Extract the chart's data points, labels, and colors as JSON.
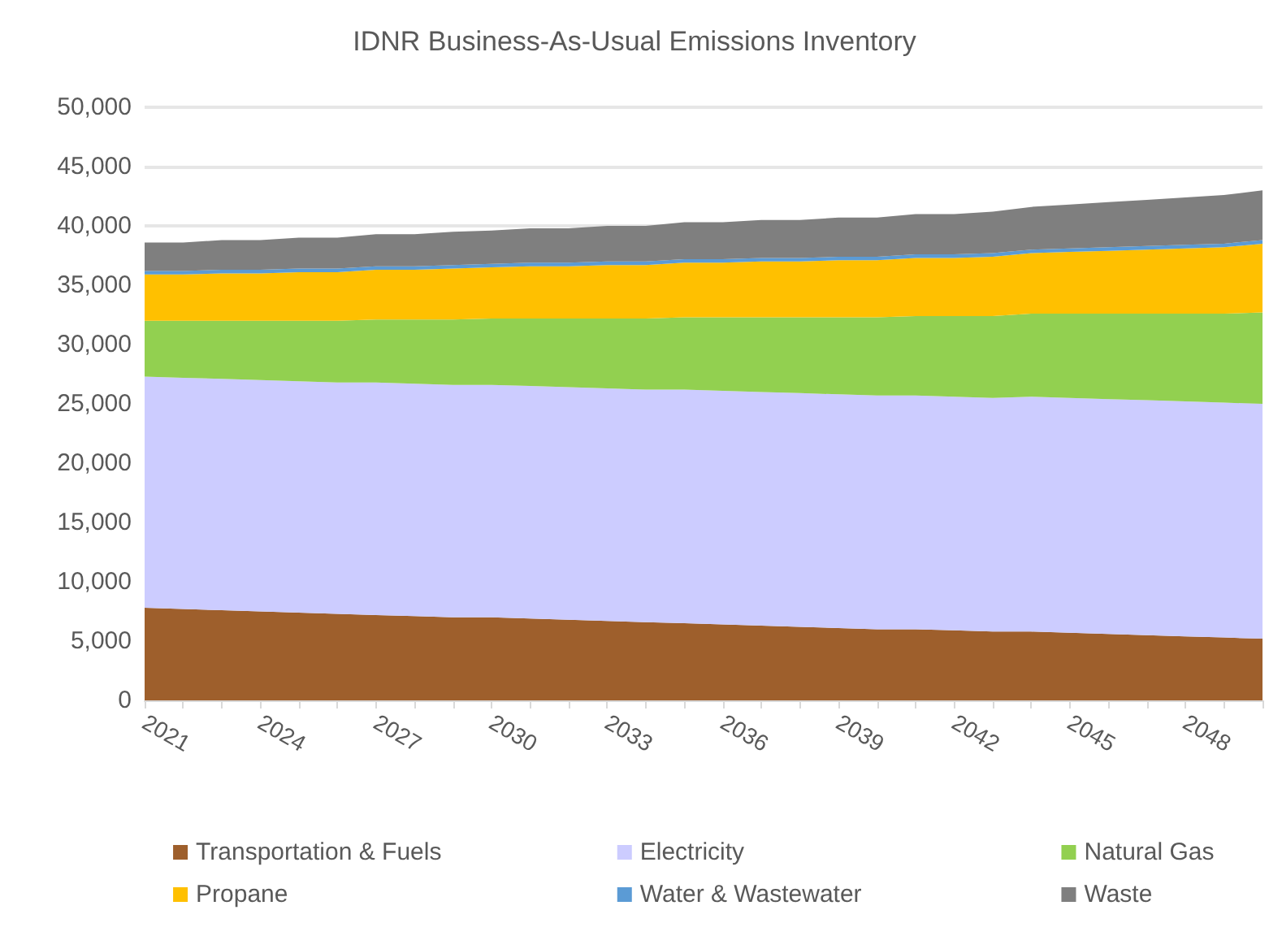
{
  "chart_data": {
    "type": "area",
    "title": "IDNR Business-As-Usual Emissions Inventory",
    "stacked": true,
    "categories": [
      "2021",
      null,
      null,
      "2024",
      null,
      null,
      "2027",
      null,
      null,
      "2030",
      null,
      null,
      "2033",
      null,
      null,
      "2036",
      null,
      null,
      "2039",
      null,
      null,
      "2042",
      null,
      null,
      "2045",
      null,
      null,
      "2048",
      null,
      null
    ],
    "series": [
      {
        "name": "Transportation & Fuels",
        "color": "#9e5f2c",
        "values": [
          7800,
          7700,
          7600,
          7500,
          7400,
          7300,
          7200,
          7100,
          7000,
          7000,
          6900,
          6800,
          6700,
          6600,
          6500,
          6400,
          6300,
          6200,
          6100,
          6000,
          6000,
          5900,
          5800,
          5800,
          5700,
          5600,
          5500,
          5400,
          5300,
          5200
        ]
      },
      {
        "name": "Electricity",
        "color": "#ccccff",
        "values": [
          19500,
          19500,
          19500,
          19500,
          19500,
          19500,
          19600,
          19600,
          19600,
          19600,
          19600,
          19600,
          19600,
          19600,
          19700,
          19700,
          19700,
          19700,
          19700,
          19700,
          19700,
          19700,
          19700,
          19800,
          19800,
          19800,
          19800,
          19800,
          19800,
          19800
        ]
      },
      {
        "name": "Natural Gas",
        "color": "#92d050",
        "values": [
          4700,
          4800,
          4900,
          5000,
          5100,
          5200,
          5300,
          5400,
          5500,
          5600,
          5700,
          5800,
          5900,
          6000,
          6100,
          6200,
          6300,
          6400,
          6500,
          6600,
          6700,
          6800,
          6900,
          7000,
          7100,
          7200,
          7300,
          7400,
          7500,
          7700
        ]
      },
      {
        "name": "Propane",
        "color": "#ffc000",
        "values": [
          3900,
          3900,
          4000,
          4000,
          4100,
          4100,
          4200,
          4200,
          4300,
          4300,
          4400,
          4400,
          4500,
          4500,
          4600,
          4600,
          4700,
          4700,
          4800,
          4800,
          4900,
          4900,
          5000,
          5100,
          5200,
          5300,
          5400,
          5500,
          5600,
          5800
        ]
      },
      {
        "name": "Water & Wastewater",
        "color": "#5b9bd5",
        "values": [
          300,
          300,
          300,
          300,
          300,
          300,
          300,
          300,
          300,
          300,
          300,
          300,
          300,
          300,
          300,
          300,
          300,
          300,
          300,
          300,
          300,
          300,
          300,
          300,
          300,
          300,
          300,
          300,
          300,
          300
        ]
      },
      {
        "name": "Waste",
        "color": "#7f7f7f",
        "values": [
          2400,
          2400,
          2500,
          2500,
          2600,
          2600,
          2700,
          2700,
          2800,
          2800,
          2900,
          2900,
          3000,
          3000,
          3100,
          3100,
          3200,
          3200,
          3300,
          3300,
          3400,
          3400,
          3500,
          3600,
          3700,
          3800,
          3900,
          4000,
          4100,
          4200
        ]
      }
    ],
    "ylim": [
      0,
      50000
    ],
    "yticks": [
      0,
      {
        "value": 5000,
        "label": "5,000"
      },
      {
        "value": 10000,
        "label": "10,000"
      },
      {
        "value": 15000,
        "label": "15,000"
      },
      {
        "value": 20000,
        "label": "20,000"
      },
      {
        "value": 25000,
        "label": "25,000"
      },
      {
        "value": 30000,
        "label": "30,000"
      },
      {
        "value": 35000,
        "label": "35,000"
      },
      {
        "value": 40000,
        "label": "40,000"
      },
      {
        "value": 45000,
        "label": "45,000"
      },
      {
        "value": 50000,
        "label": "50,000"
      }
    ],
    "grid": "y",
    "legend": "bottom"
  }
}
